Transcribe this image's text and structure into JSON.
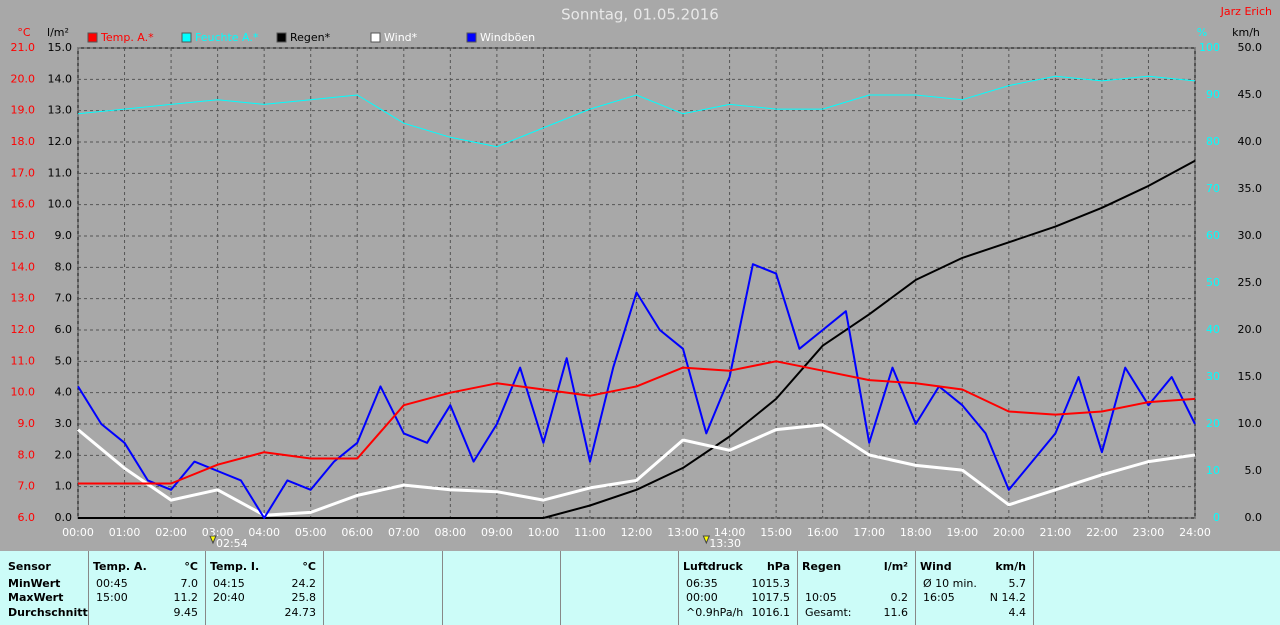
{
  "chart_data": {
    "type": "line",
    "title": "Sonntag, 01.05.2016",
    "author": "Jarz Erich",
    "axis_titles": {
      "y": "°C",
      "y2": "l/m²",
      "y3": "%",
      "y4": "km/h"
    },
    "annotations": [
      {
        "x": 2.9,
        "label": "02:54"
      },
      {
        "x": 13.5,
        "label": "13:30"
      }
    ],
    "grid": true,
    "xlim": [
      0,
      24
    ],
    "xticks": [
      {
        "value": 0,
        "label": "00:00"
      },
      {
        "value": 1,
        "label": "01:00"
      },
      {
        "value": 2,
        "label": "02:00"
      },
      {
        "value": 3,
        "label": "03:00"
      },
      {
        "value": 4,
        "label": "04:00"
      },
      {
        "value": 5,
        "label": "05:00"
      },
      {
        "value": 6,
        "label": "06:00"
      },
      {
        "value": 7,
        "label": "07:00"
      },
      {
        "value": 8,
        "label": "08:00"
      },
      {
        "value": 9,
        "label": "09:00"
      },
      {
        "value": 10,
        "label": "10:00"
      },
      {
        "value": 11,
        "label": "11:00"
      },
      {
        "value": 12,
        "label": "12:00"
      },
      {
        "value": 13,
        "label": "13:00"
      },
      {
        "value": 14,
        "label": "14:00"
      },
      {
        "value": 15,
        "label": "15:00"
      },
      {
        "value": 16,
        "label": "16:00"
      },
      {
        "value": 17,
        "label": "17:00"
      },
      {
        "value": 18,
        "label": "18:00"
      },
      {
        "value": 19,
        "label": "19:00"
      },
      {
        "value": 20,
        "label": "20:00"
      },
      {
        "value": 21,
        "label": "21:00"
      },
      {
        "value": 22,
        "label": "22:00"
      },
      {
        "value": 23,
        "label": "23:00"
      },
      {
        "value": 24,
        "label": "24:00"
      }
    ],
    "ylim": [
      6,
      21
    ],
    "yticks": [
      {
        "value": 6,
        "label": "6.0"
      },
      {
        "value": 7,
        "label": "7.0"
      },
      {
        "value": 8,
        "label": "8.0"
      },
      {
        "value": 9,
        "label": "9.0"
      },
      {
        "value": 10,
        "label": "10.0"
      },
      {
        "value": 11,
        "label": "11.0"
      },
      {
        "value": 12,
        "label": "12.0"
      },
      {
        "value": 13,
        "label": "13.0"
      },
      {
        "value": 14,
        "label": "14.0"
      },
      {
        "value": 15,
        "label": "15.0"
      },
      {
        "value": 16,
        "label": "16.0"
      },
      {
        "value": 17,
        "label": "17.0"
      },
      {
        "value": 18,
        "label": "18.0"
      },
      {
        "value": 19,
        "label": "19.0"
      },
      {
        "value": 20,
        "label": "20.0"
      },
      {
        "value": 21,
        "label": "21.0"
      }
    ],
    "y2lim": [
      0,
      15
    ],
    "y2ticks": [
      {
        "value": 0,
        "label": "0.0"
      },
      {
        "value": 1,
        "label": "1.0"
      },
      {
        "value": 2,
        "label": "2.0"
      },
      {
        "value": 3,
        "label": "3.0"
      },
      {
        "value": 4,
        "label": "4.0"
      },
      {
        "value": 5,
        "label": "5.0"
      },
      {
        "value": 6,
        "label": "6.0"
      },
      {
        "value": 7,
        "label": "7.0"
      },
      {
        "value": 8,
        "label": "8.0"
      },
      {
        "value": 9,
        "label": "9.0"
      },
      {
        "value": 10,
        "label": "10.0"
      },
      {
        "value": 11,
        "label": "11.0"
      },
      {
        "value": 12,
        "label": "12.0"
      },
      {
        "value": 13,
        "label": "13.0"
      },
      {
        "value": 14,
        "label": "14.0"
      },
      {
        "value": 15,
        "label": "15.0"
      }
    ],
    "y3lim": [
      0,
      100
    ],
    "y3ticks": [
      0,
      10,
      20,
      30,
      40,
      50,
      60,
      70,
      80,
      90,
      100
    ],
    "y4lim": [
      0,
      50
    ],
    "y4ticks": [
      {
        "value": 0,
        "label": "0.0"
      },
      {
        "value": 5,
        "label": "5.0"
      },
      {
        "value": 10,
        "label": "10.0"
      },
      {
        "value": 15,
        "label": "15.0"
      },
      {
        "value": 20,
        "label": "20.0"
      },
      {
        "value": 25,
        "label": "25.0"
      },
      {
        "value": 30,
        "label": "30.0"
      },
      {
        "value": 35,
        "label": "35.0"
      },
      {
        "value": 40,
        "label": "40.0"
      },
      {
        "value": 45,
        "label": "45.0"
      },
      {
        "value": 50,
        "label": "50.0"
      }
    ],
    "x": [
      0,
      1,
      2,
      3,
      4,
      5,
      6,
      7,
      8,
      9,
      10,
      11,
      12,
      13,
      14,
      15,
      16,
      17,
      18,
      19,
      20,
      21,
      22,
      23,
      24
    ],
    "series": [
      {
        "name": "Temp. A.*",
        "color": "#ff0000",
        "axis": "y",
        "width": 2,
        "values": [
          7.1,
          7.1,
          7.1,
          7.7,
          8.1,
          7.9,
          7.9,
          9.6,
          10.0,
          10.3,
          10.1,
          9.9,
          10.2,
          10.8,
          10.7,
          11.0,
          10.7,
          10.4,
          10.3,
          10.1,
          9.4,
          9.3,
          9.4,
          9.7,
          9.8
        ]
      },
      {
        "name": "Feuchte A.*",
        "color": "#00ffff",
        "axis": "y3",
        "width": 1,
        "values": [
          86,
          87,
          88,
          89,
          88,
          89,
          90,
          84,
          81,
          79,
          83,
          87,
          90,
          86,
          88,
          87,
          87,
          90,
          90,
          89,
          92,
          94,
          93,
          94,
          93
        ]
      },
      {
        "name": "Regen*",
        "color": "#000000",
        "axis": "y2",
        "width": 2,
        "values": [
          0,
          0,
          0,
          0,
          0,
          0,
          0,
          0,
          0,
          0,
          0,
          0.4,
          0.9,
          1.6,
          2.6,
          3.8,
          5.5,
          6.5,
          7.6,
          8.3,
          8.8,
          9.3,
          9.9,
          10.6,
          11.4
        ]
      },
      {
        "name": "Wind*",
        "color": "#ffffff",
        "axis": "y4",
        "width": 3,
        "values": [
          9.4,
          5.3,
          1.9,
          3,
          0.3,
          0.6,
          2.4,
          3.5,
          3,
          2.8,
          1.9,
          3.2,
          4,
          8.3,
          7.2,
          9.4,
          9.9,
          6.7,
          5.6,
          5.1,
          1.4,
          3,
          4.6,
          6,
          6.7
        ]
      },
      {
        "name": "Windböen",
        "color": "#0000ff",
        "axis": "y4",
        "width": 2,
        "x": [
          0,
          0.5,
          1,
          1.5,
          2,
          2.5,
          3,
          3.5,
          4,
          4.5,
          5,
          5.5,
          6,
          6.5,
          7,
          7.5,
          8,
          8.5,
          9,
          9.5,
          10,
          10.5,
          11,
          11.5,
          12,
          12.5,
          13,
          13.5,
          14,
          14.5,
          15,
          15.5,
          16,
          16.5,
          17,
          17.5,
          18,
          18.5,
          19,
          19.5,
          20,
          20.5,
          21,
          21.5,
          22,
          22.5,
          23,
          23.5,
          24
        ],
        "values": [
          14,
          10,
          8,
          4,
          3,
          6,
          5,
          4,
          0,
          4,
          3,
          6,
          8,
          14,
          9,
          8,
          12,
          6,
          10,
          16,
          8,
          17,
          6,
          16,
          24,
          20,
          18,
          9,
          15,
          27,
          26,
          18,
          20,
          22,
          8,
          16,
          10,
          14,
          12,
          9,
          3,
          6,
          9,
          15,
          7,
          16,
          12,
          15,
          10
        ]
      }
    ]
  },
  "table": {
    "sensor": [
      "Sensor",
      "MinWert",
      "MaxWert",
      "Durchschnitt"
    ],
    "groups": [
      {
        "title": "Temp. A.",
        "unit": "°C",
        "rows": [
          [
            "00:45",
            "7.0"
          ],
          [
            "15:00",
            "11.2"
          ],
          [
            null,
            "9.45"
          ]
        ]
      },
      {
        "title": "Temp. I.",
        "unit": "°C",
        "rows": [
          [
            "04:15",
            "24.2"
          ],
          [
            "20:40",
            "25.8"
          ],
          [
            null,
            "24.73"
          ]
        ]
      },
      null,
      null,
      null,
      {
        "title": "Luftdruck",
        "unit": "hPa",
        "rows": [
          [
            "06:35",
            "1015.3"
          ],
          [
            "00:00",
            "1017.5"
          ],
          [
            "^0.9hPa/h",
            "1016.1"
          ]
        ]
      },
      {
        "title": "Regen",
        "unit": "l/m²",
        "rows": [
          [
            null,
            null
          ],
          [
            "10:05",
            "0.2"
          ],
          [
            "Gesamt:",
            "11.6"
          ]
        ]
      },
      {
        "title": "Wind",
        "unit": "km/h",
        "rows": [
          [
            "Ø 10 min.",
            "5.7"
          ],
          [
            "16:05",
            "N 14.2"
          ],
          [
            null,
            "4.4"
          ]
        ]
      }
    ]
  }
}
